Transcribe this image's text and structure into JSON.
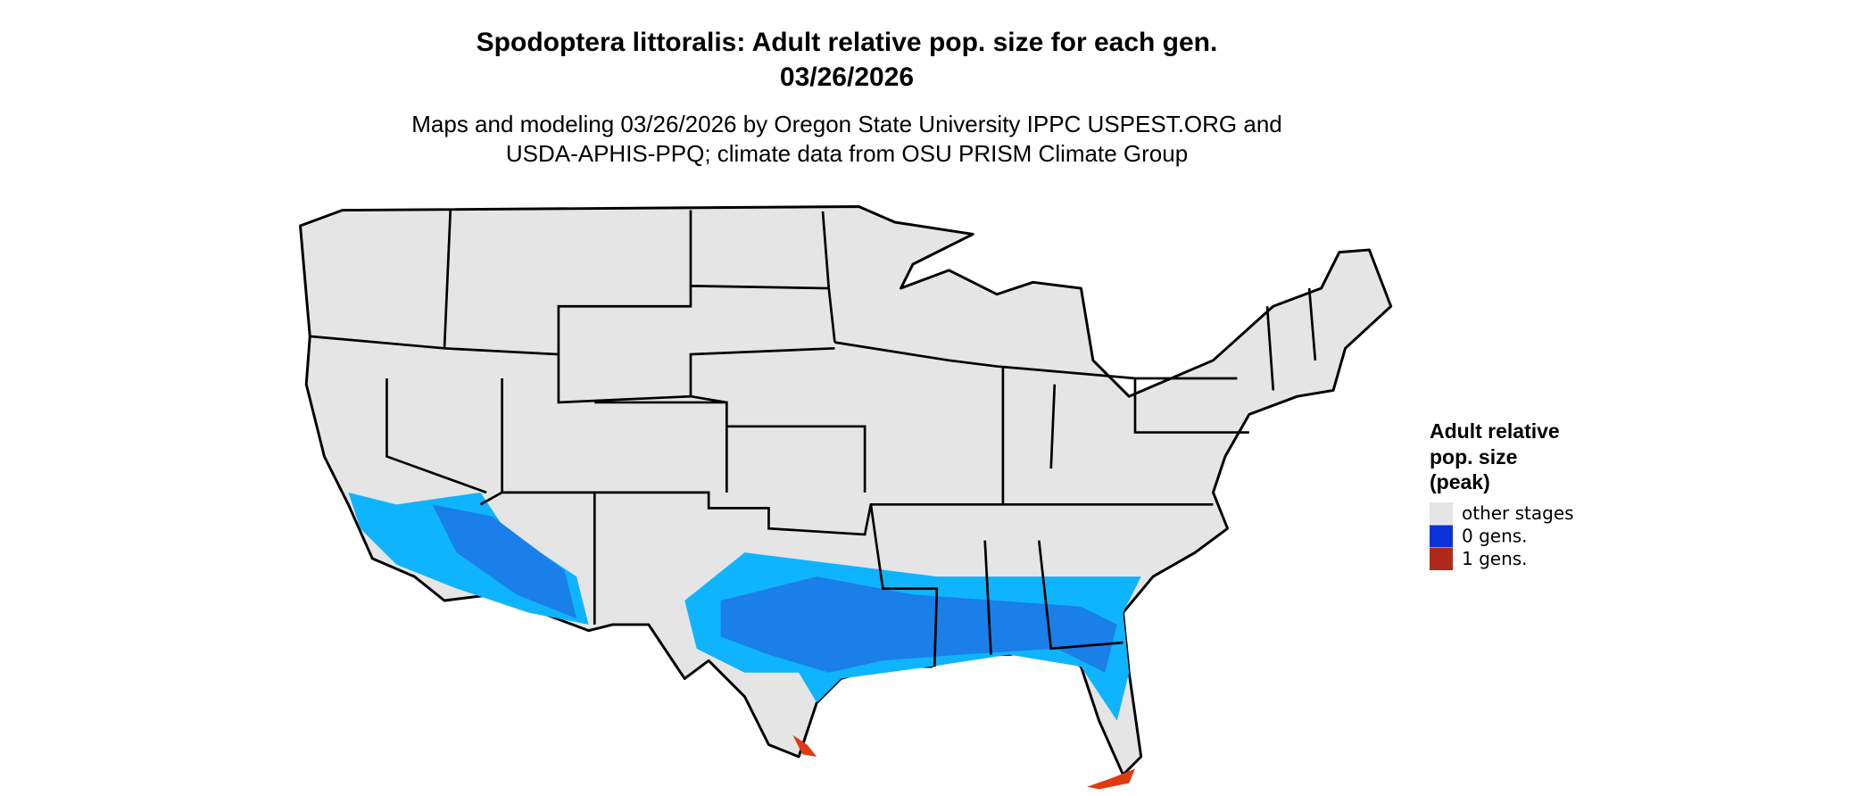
{
  "header": {
    "title_line1": "Spodoptera littoralis: Adult relative pop. size for each gen.",
    "title_line2": "03/26/2026",
    "subtitle_line1": "Maps and modeling 03/26/2026 by Oregon State University IPPC USPEST.ORG and",
    "subtitle_line2": "USDA-APHIS-PPQ; climate data from OSU PRISM Climate Group"
  },
  "legend": {
    "title_lines": [
      "Adult relative",
      "pop. size",
      "(peak)"
    ],
    "items": [
      {
        "label": "other stages",
        "color": "#e5e5e5"
      },
      {
        "label": "0 gens.",
        "color": "#0a32d8"
      },
      {
        "label": "1 gens.",
        "color": "#b0281a"
      }
    ]
  }
}
